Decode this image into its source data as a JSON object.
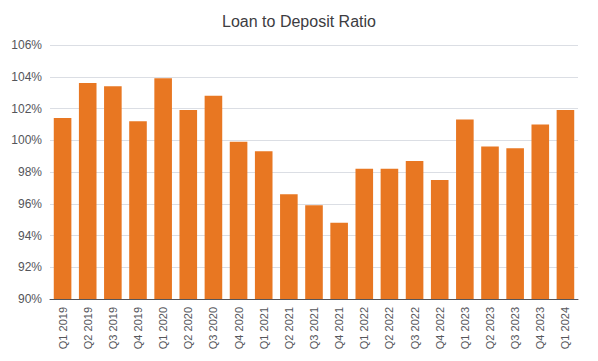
{
  "chart_data": {
    "type": "bar",
    "title": "Loan to Deposit Ratio",
    "categories": [
      "Q1 2019",
      "Q2 2019",
      "Q3 2019",
      "Q4 2019",
      "Q1 2020",
      "Q2 2020",
      "Q3 2020",
      "Q4 2020",
      "Q1 2021",
      "Q2 2021",
      "Q3 2021",
      "Q4 2021",
      "Q1 2022",
      "Q2 2022",
      "Q3 2022",
      "Q4 2022",
      "Q1 2023",
      "Q2 2023",
      "Q3 2023",
      "Q4 2023",
      "Q1 2024"
    ],
    "values": [
      101.4,
      103.6,
      103.4,
      101.2,
      103.9,
      101.9,
      102.8,
      99.9,
      99.3,
      96.6,
      95.9,
      94.8,
      98.2,
      98.2,
      98.7,
      97.5,
      101.3,
      99.6,
      99.5,
      101.0,
      101.9
    ],
    "color": "#E87722",
    "ylim": [
      90,
      106
    ],
    "yticks": [
      {
        "value": 90,
        "label": "90%"
      },
      {
        "value": 92,
        "label": "92%"
      },
      {
        "value": 94,
        "label": "94%"
      },
      {
        "value": 96,
        "label": "96%"
      },
      {
        "value": 98,
        "label": "98%"
      },
      {
        "value": 100,
        "label": "100%"
      },
      {
        "value": 102,
        "label": "102%"
      },
      {
        "value": 104,
        "label": "104%"
      },
      {
        "value": 106,
        "label": "106%"
      }
    ],
    "grid": true
  }
}
